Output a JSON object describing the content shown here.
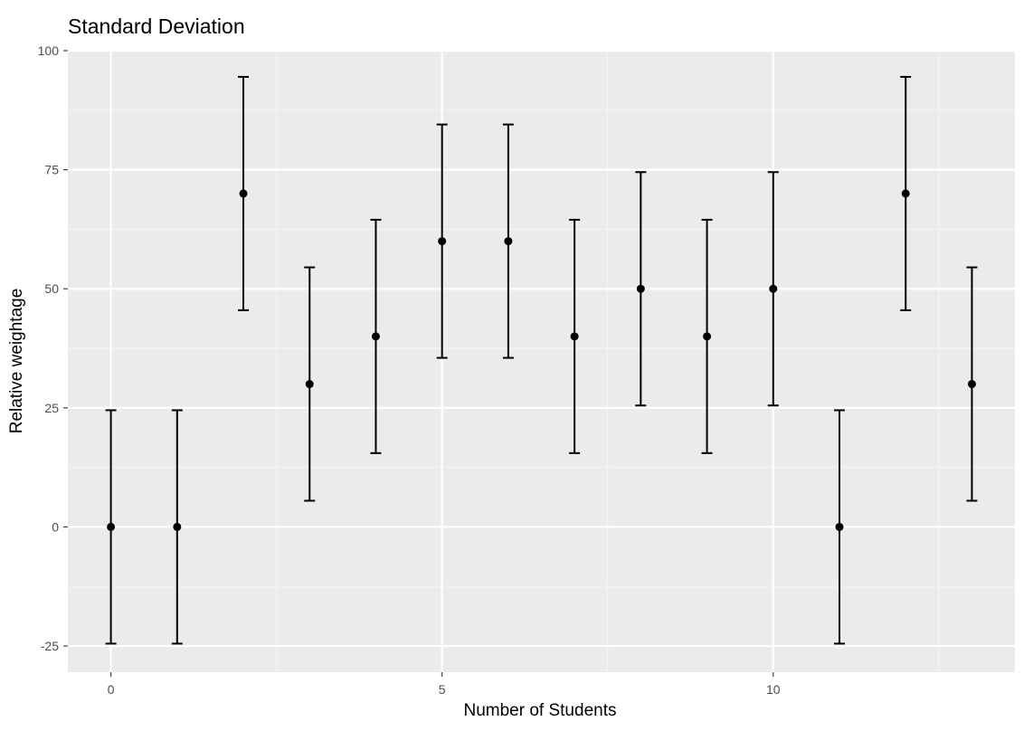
{
  "chart_data": {
    "type": "errorbar",
    "title": "Standard Deviation",
    "xlabel": "Number of Students",
    "ylabel": "Relative weightage",
    "xlim": [
      -0.65,
      13.65
    ],
    "ylim": [
      -30.5,
      100
    ],
    "x_ticks": [
      0,
      5,
      10
    ],
    "x_tick_labels": [
      "0",
      "5",
      "10"
    ],
    "y_ticks": [
      -25,
      0,
      25,
      50,
      75,
      100
    ],
    "y_tick_labels": [
      "-25",
      "0",
      "25",
      "50",
      "75",
      "100"
    ],
    "grid": true,
    "points": [
      {
        "x": 0,
        "y": 0,
        "ymin": -24.5,
        "ymax": 24.5
      },
      {
        "x": 1,
        "y": 0,
        "ymin": -24.5,
        "ymax": 24.5
      },
      {
        "x": 2,
        "y": 70,
        "ymin": 45.5,
        "ymax": 94.5
      },
      {
        "x": 3,
        "y": 30,
        "ymin": 5.5,
        "ymax": 54.5
      },
      {
        "x": 4,
        "y": 40,
        "ymin": 15.5,
        "ymax": 64.5
      },
      {
        "x": 5,
        "y": 60,
        "ymin": 35.5,
        "ymax": 84.5
      },
      {
        "x": 6,
        "y": 60,
        "ymin": 35.5,
        "ymax": 84.5
      },
      {
        "x": 7,
        "y": 40,
        "ymin": 15.5,
        "ymax": 64.5
      },
      {
        "x": 8,
        "y": 50,
        "ymin": 25.5,
        "ymax": 74.5
      },
      {
        "x": 9,
        "y": 40,
        "ymin": 15.5,
        "ymax": 64.5
      },
      {
        "x": 10,
        "y": 50,
        "ymin": 25.5,
        "ymax": 74.5
      },
      {
        "x": 11,
        "y": 0,
        "ymin": -24.5,
        "ymax": 24.5
      },
      {
        "x": 12,
        "y": 70,
        "ymin": 45.5,
        "ymax": 94.5
      },
      {
        "x": 13,
        "y": 30,
        "ymin": 5.5,
        "ymax": 54.5
      }
    ],
    "colors": {
      "panel_background": "#ebebeb",
      "grid_major": "#ffffff",
      "grid_minor": "#f5f5f5",
      "marks": "#000000",
      "tick_label": "#4d4d4d",
      "tick_mark": "#333333"
    }
  }
}
